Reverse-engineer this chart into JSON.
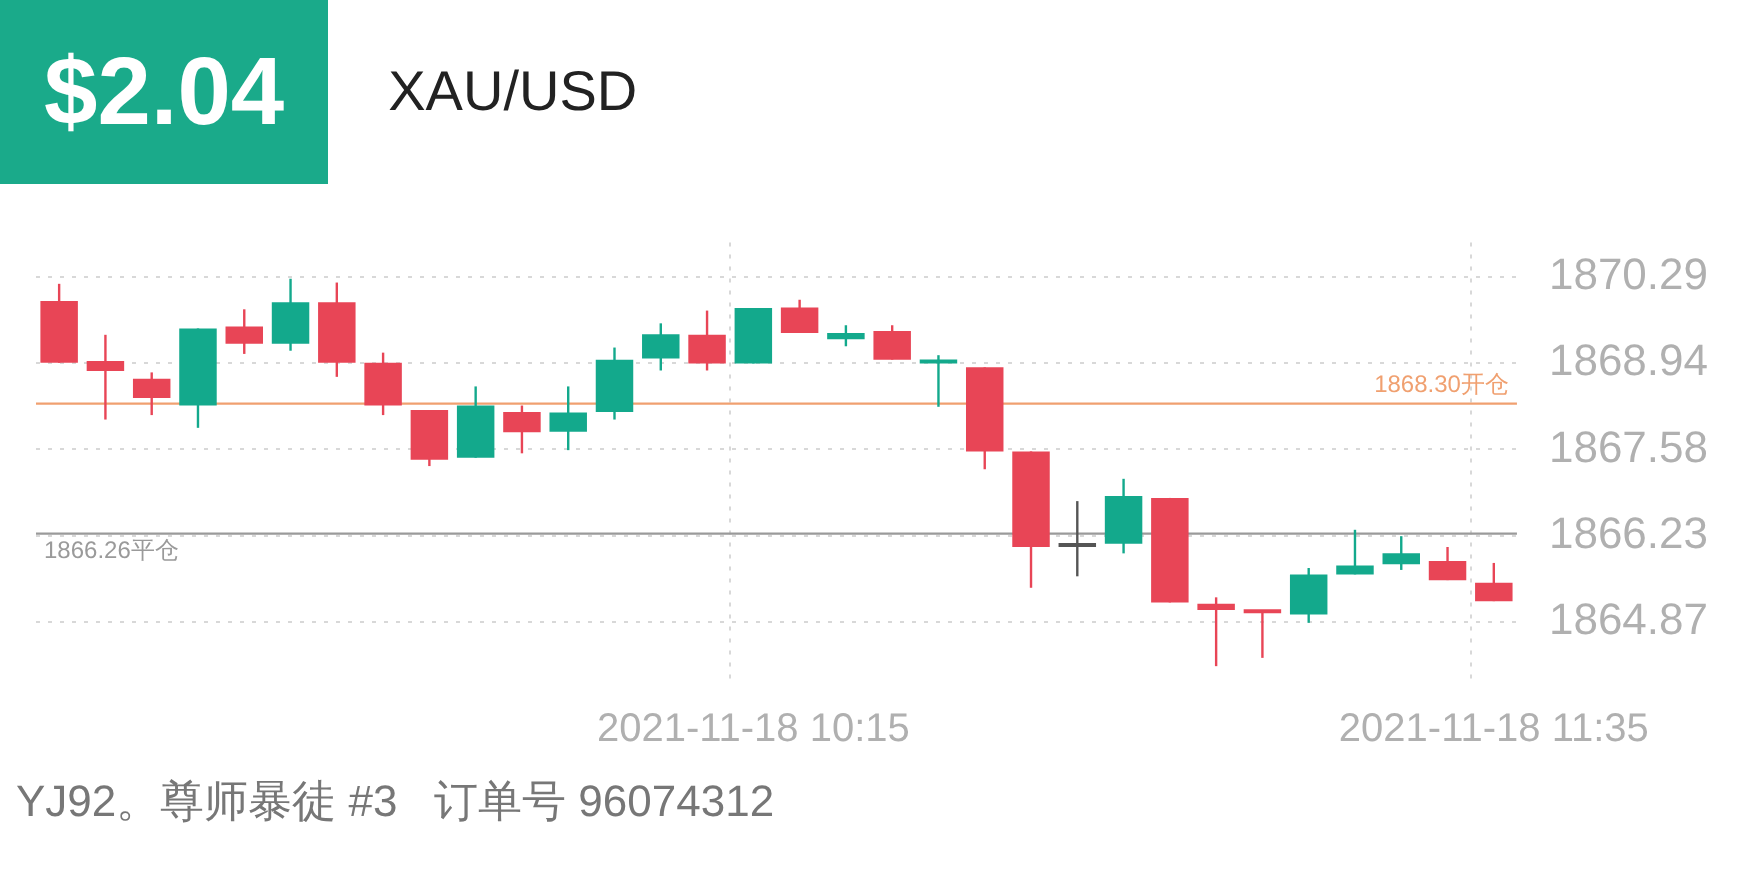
{
  "chart_data": {
    "type": "candlestick",
    "title": "$2.04",
    "subtitle": "XAU/USD",
    "categories": [
      null,
      null,
      null,
      null,
      null,
      null,
      null,
      null,
      null,
      null,
      null,
      null,
      null,
      null,
      null,
      "2021-11-18 10:15",
      null,
      null,
      null,
      null,
      null,
      null,
      null,
      null,
      null,
      null,
      null,
      null,
      null,
      null,
      null,
      "2021-11-18 11:35"
    ],
    "ohlc": [
      [
        1869.91,
        1870.18,
        1868.94,
        1868.94
      ],
      [
        1868.97,
        1869.38,
        1868.05,
        1868.81
      ],
      [
        1868.69,
        1868.79,
        1868.12,
        1868.39
      ],
      [
        1868.27,
        1869.48,
        1867.92,
        1869.48
      ],
      [
        1869.51,
        1869.78,
        1869.08,
        1869.24
      ],
      [
        1869.24,
        1870.26,
        1869.13,
        1869.89
      ],
      [
        1869.89,
        1870.2,
        1868.72,
        1868.94
      ],
      [
        1868.94,
        1869.1,
        1868.12,
        1868.27
      ],
      [
        1868.2,
        1868.2,
        1867.32,
        1867.42
      ],
      [
        1867.45,
        1868.57,
        1867.45,
        1868.27
      ],
      [
        1868.17,
        1868.27,
        1867.52,
        1867.85
      ],
      [
        1867.86,
        1868.57,
        1867.57,
        1868.16
      ],
      [
        1868.17,
        1869.18,
        1868.05,
        1868.99
      ],
      [
        1869.01,
        1869.56,
        1868.82,
        1869.39
      ],
      [
        1869.38,
        1869.76,
        1868.82,
        1868.93
      ],
      [
        1868.93,
        1869.8,
        1868.93,
        1869.8
      ],
      [
        1869.81,
        1869.93,
        1869.41,
        1869.41
      ],
      [
        1869.31,
        1869.53,
        1869.2,
        1869.41
      ],
      [
        1869.44,
        1869.53,
        1868.99,
        1868.99
      ],
      [
        1868.93,
        1869.06,
        1868.25,
        1868.95
      ],
      [
        1868.87,
        1868.87,
        1867.27,
        1867.55
      ],
      [
        1867.55,
        1867.55,
        1865.41,
        1866.05
      ],
      [
        1866.09,
        1866.77,
        1865.59,
        1866.05
      ],
      [
        1866.1,
        1867.12,
        1865.95,
        1866.85
      ],
      [
        1866.82,
        1866.82,
        1865.18,
        1865.18
      ],
      [
        1865.16,
        1865.26,
        1864.18,
        1865.06
      ],
      [
        1865.06,
        1865.06,
        1864.31,
        1865.01
      ],
      [
        1864.99,
        1865.72,
        1864.86,
        1865.62
      ],
      [
        1865.62,
        1866.32,
        1865.62,
        1865.76
      ],
      [
        1865.78,
        1866.22,
        1865.69,
        1865.95
      ],
      [
        1865.83,
        1866.05,
        1865.53,
        1865.53
      ],
      [
        1865.49,
        1865.8,
        1865.2,
        1865.2
      ]
    ],
    "colors": [
      "#e84556",
      "#e84556",
      "#e84556",
      "#13a98c",
      "#e84556",
      "#13a98c",
      "#e84556",
      "#e84556",
      "#e84556",
      "#13a98c",
      "#e84556",
      "#13a98c",
      "#13a98c",
      "#13a98c",
      "#e84556",
      "#13a98c",
      "#e84556",
      "#13a98c",
      "#e84556",
      "#13a98c",
      "#e84556",
      "#e84556",
      "#555555",
      "#13a98c",
      "#e84556",
      "#e84556",
      "#e84556",
      "#13a98c",
      "#13a98c",
      "#13a98c",
      "#e84556",
      "#e84556"
    ],
    "ylim": [
      1863.9,
      1870.83
    ],
    "yticks": [
      1864.87,
      1866.23,
      1867.58,
      1868.94,
      1870.29
    ],
    "grid": true,
    "ref_lines": [
      {
        "axis": "y",
        "value": 1868.3,
        "label": "1868.30开仓",
        "color": "#f0a070"
      },
      {
        "axis": "y",
        "value": 1866.26,
        "label": "1866.26平仓",
        "color": "#9a9a9a"
      }
    ],
    "annotations": [
      "YJ92。尊师暴徒 #3   订单号 96074312"
    ]
  }
}
